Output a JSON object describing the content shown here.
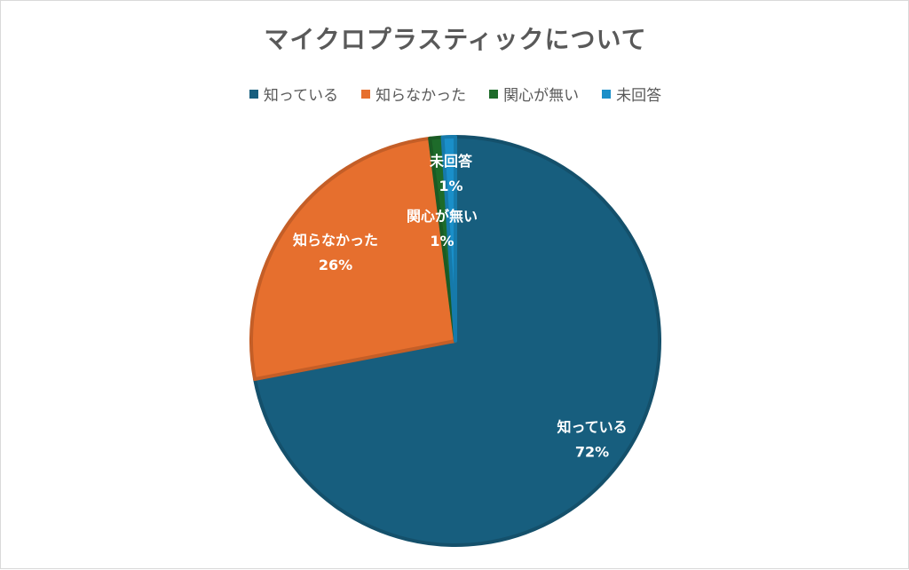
{
  "chart_data": {
    "type": "pie",
    "title": "マイクロプラスティックについて",
    "categories": [
      "知っている",
      "知らなかった",
      "関心が無い",
      "未回答"
    ],
    "values": [
      72,
      26,
      1,
      1
    ],
    "percent_labels": [
      "72%",
      "26%",
      "1%",
      "1%"
    ],
    "colors": [
      "#175e7e",
      "#e66f2e",
      "#1e6b2a",
      "#1a8fc9"
    ],
    "legend_position": "top"
  }
}
